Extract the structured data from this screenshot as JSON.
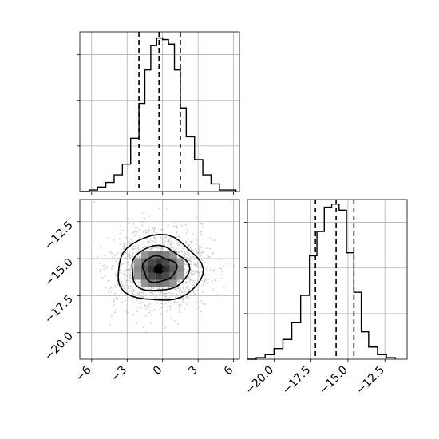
{
  "chart_data": [
    {
      "panel": "top-left",
      "type": "histogram",
      "variable": "x",
      "grid": true,
      "xlim": [
        -7,
        6.5
      ],
      "bins": [
        -6.9,
        -6.2,
        -5.5,
        -4.8,
        -4.1,
        -3.4,
        -2.7,
        -2.0,
        -1.5,
        -1.0,
        -0.5,
        0.0,
        0.5,
        1.0,
        1.5,
        2.0,
        2.7,
        3.4,
        4.1,
        4.8,
        5.5,
        6.2
      ],
      "counts": [
        0,
        1,
        3,
        6,
        11,
        18,
        35,
        58,
        80,
        96,
        101,
        100,
        97,
        80,
        55,
        36,
        21,
        11,
        5,
        1,
        1
      ],
      "quantile_lines": [
        -2.0,
        -0.3,
        1.5
      ],
      "y_ticks": [
        30,
        60,
        90
      ]
    },
    {
      "panel": "bottom-left",
      "type": "heatmap",
      "x_variable": "x",
      "y_variable": "y",
      "xlim": [
        -7,
        6.5
      ],
      "ylim": [
        -21.8,
        -11.0
      ],
      "x_ticks": [
        "−6",
        "−3",
        "0",
        "3",
        "6"
      ],
      "x_tick_values": [
        -6,
        -3,
        0,
        3,
        6
      ],
      "y_ticks": [
        "−12.5",
        "−15.0",
        "−17.5",
        "−20.0"
      ],
      "y_tick_values": [
        -12.5,
        -15.0,
        -17.5,
        -20.0
      ],
      "center": [
        -0.3,
        -15.7
      ],
      "contour_levels": [
        "outer",
        "middle",
        "inner",
        "innermost"
      ]
    },
    {
      "panel": "bottom-right",
      "type": "histogram",
      "variable": "y",
      "grid": true,
      "xlim": [
        -21.8,
        -11.0
      ],
      "bins": [
        -21.8,
        -21.2,
        -20.6,
        -20.0,
        -19.4,
        -18.8,
        -18.2,
        -17.6,
        -17.1,
        -16.6,
        -16.1,
        -15.6,
        -15.1,
        -14.6,
        -14.1,
        -13.6,
        -13.0,
        -12.4,
        -11.8
      ],
      "counts": [
        0,
        1,
        3,
        7,
        13,
        24,
        42,
        68,
        84,
        100,
        102,
        98,
        70,
        44,
        18,
        8,
        3,
        1
      ],
      "quantile_lines": [
        -17.2,
        -15.8,
        -14.6
      ],
      "x_ticks": [
        "−20.0",
        "−17.5",
        "−15.0",
        "−12.5"
      ],
      "x_tick_values": [
        -20.0,
        -17.5,
        -15.0,
        -12.5
      ],
      "y_ticks": [
        30,
        60,
        90
      ]
    }
  ],
  "colors": {
    "line": "#000000",
    "grid": "#b0b0b0",
    "quantile": "#000000",
    "scatter": "#9a9a9a"
  }
}
